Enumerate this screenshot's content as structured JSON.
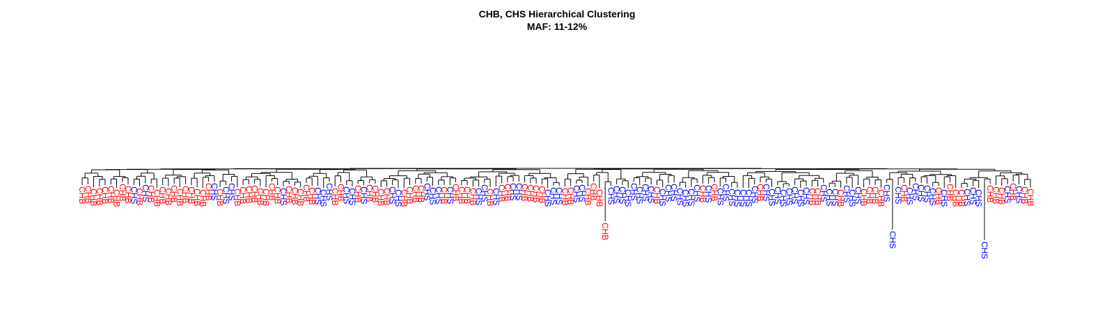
{
  "title": {
    "line1": "CHB, CHS Hierarchical Clustering",
    "line2": "MAF: 11-12%"
  },
  "colors": {
    "CHB": "#ff0000",
    "CHS": "#0000ff",
    "branch": "#000000"
  },
  "chart_data": {
    "type": "dendrogram",
    "title": "CHB, CHS Hierarchical Clustering\nMAF: 11-12%",
    "xlabel": "",
    "ylabel": "",
    "populations": [
      "CHB",
      "CHS"
    ],
    "leaf_order": "CHB CHB CHB CHB CHB CHB CHB CHB CHB CHS CHB CHS CHB CHB CHB CHB CHB CHB CHB CHB CHB CHB CHB CHS CHB CHS CHS CHB CHB CHB CHB CHB CHB CHB CHB CHS CHB CHB CHB CHB CHB CHS CHS CHS CHB CHB CHS CHS CHB CHS CHB CHB CHB CHB CHS CHS CHB CHB CHB CHB CHS CHS CHS CHB CHS CHB CHB CHB CHB CHS CHS CHB CHS CHB CHB CHS CHS CHB CHB CHB CHB CHS CHS CHS CHB CHB CHS CHS CHB CHB CHB CHB CHS CHS CHS CHS CHS CHS CHS CHS CHB CHS CHS CHS CHS CHS CHS CHS CHB CHS CHB CHS CHS CHS CHS CHS CHS CHS CHB CHS CHS CHS CHS CHS CHS CHS CHS CHB CHB CHS CHS CHS CHB CHS CHS CHS CHB CHB CHB CHB CHS CHS CHS CHB CHS CHS CHS CHS CHS CHB CHS CHB CHB CHB CHS CHS CHS CHS CHB CHB CHB CHS CHB CHS CHB CHB"
  }
}
